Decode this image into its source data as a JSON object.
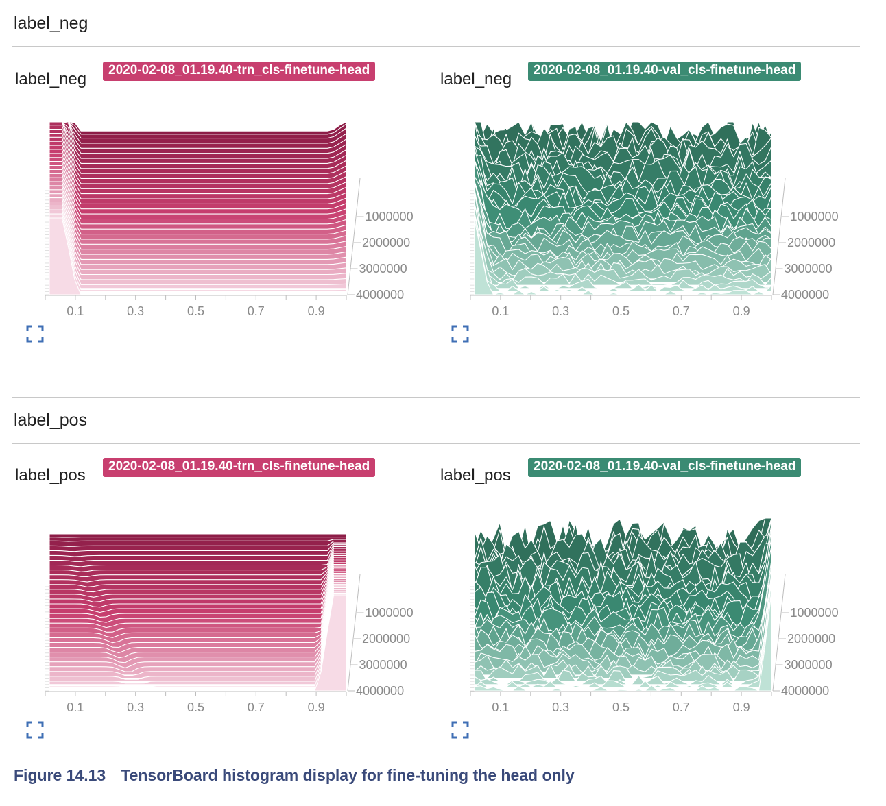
{
  "colors": {
    "trn": "#c83f6f",
    "val": "#3b8b73",
    "trn_front": "#f7dbe6",
    "trn_back": "#8d1d47",
    "val_front": "#bfe2d6",
    "val_back": "#2f6c58",
    "axis": "#bdbdbd"
  },
  "groups": [
    {
      "title": "label_neg",
      "cards": [
        {
          "title": "label_neg",
          "run": "2020-02-08_01.19.40-trn_cls-finetune-head",
          "kind": "trn",
          "icon": "fullscreen-icon"
        },
        {
          "title": "label_neg",
          "run": "2020-02-08_01.19.40-val_cls-finetune-head",
          "kind": "val",
          "icon": "fullscreen-icon"
        }
      ]
    },
    {
      "title": "label_pos",
      "cards": [
        {
          "title": "label_pos",
          "run": "2020-02-08_01.19.40-trn_cls-finetune-head",
          "kind": "trn",
          "icon": "fullscreen-icon"
        },
        {
          "title": "label_pos",
          "run": "2020-02-08_01.19.40-val_cls-finetune-head",
          "kind": "val",
          "icon": "fullscreen-icon"
        }
      ]
    }
  ],
  "caption": {
    "number": "Figure 14.13",
    "text": "TensorBoard histogram display for fine-tuning the head only"
  },
  "chart_data": [
    {
      "type": "histogram-offset",
      "title": "label_neg",
      "series_label": "2020-02-08_01.19.40-trn_cls-finetune-head",
      "x_ticks": [
        "0.1",
        "0.3",
        "0.5",
        "0.7",
        "0.9"
      ],
      "x_range": [
        0,
        1
      ],
      "step_ticks": [
        "1000000",
        "2000000",
        "3000000",
        "4000000"
      ],
      "step_range": [
        0,
        4000000
      ],
      "profile": "neg-trn",
      "num_slices": 34
    },
    {
      "type": "histogram-offset",
      "title": "label_neg",
      "series_label": "2020-02-08_01.19.40-val_cls-finetune-head",
      "x_ticks": [
        "0.1",
        "0.3",
        "0.5",
        "0.7",
        "0.9"
      ],
      "x_range": [
        0,
        1
      ],
      "step_ticks": [
        "1000000",
        "2000000",
        "3000000",
        "4000000"
      ],
      "step_range": [
        0,
        4000000
      ],
      "profile": "neg-val",
      "num_slices": 34
    },
    {
      "type": "histogram-offset",
      "title": "label_pos",
      "series_label": "2020-02-08_01.19.40-trn_cls-finetune-head",
      "x_ticks": [
        "0.1",
        "0.3",
        "0.5",
        "0.7",
        "0.9"
      ],
      "x_range": [
        0,
        1
      ],
      "step_ticks": [
        "1000000",
        "2000000",
        "3000000",
        "4000000"
      ],
      "step_range": [
        0,
        4000000
      ],
      "profile": "pos-trn",
      "num_slices": 34
    },
    {
      "type": "histogram-offset",
      "title": "label_pos",
      "series_label": "2020-02-08_01.19.40-val_cls-finetune-head",
      "x_ticks": [
        "0.1",
        "0.3",
        "0.5",
        "0.7",
        "0.9"
      ],
      "x_range": [
        0,
        1
      ],
      "step_ticks": [
        "1000000",
        "2000000",
        "3000000",
        "4000000"
      ],
      "step_range": [
        0,
        4000000
      ],
      "profile": "pos-val",
      "num_slices": 34
    }
  ]
}
